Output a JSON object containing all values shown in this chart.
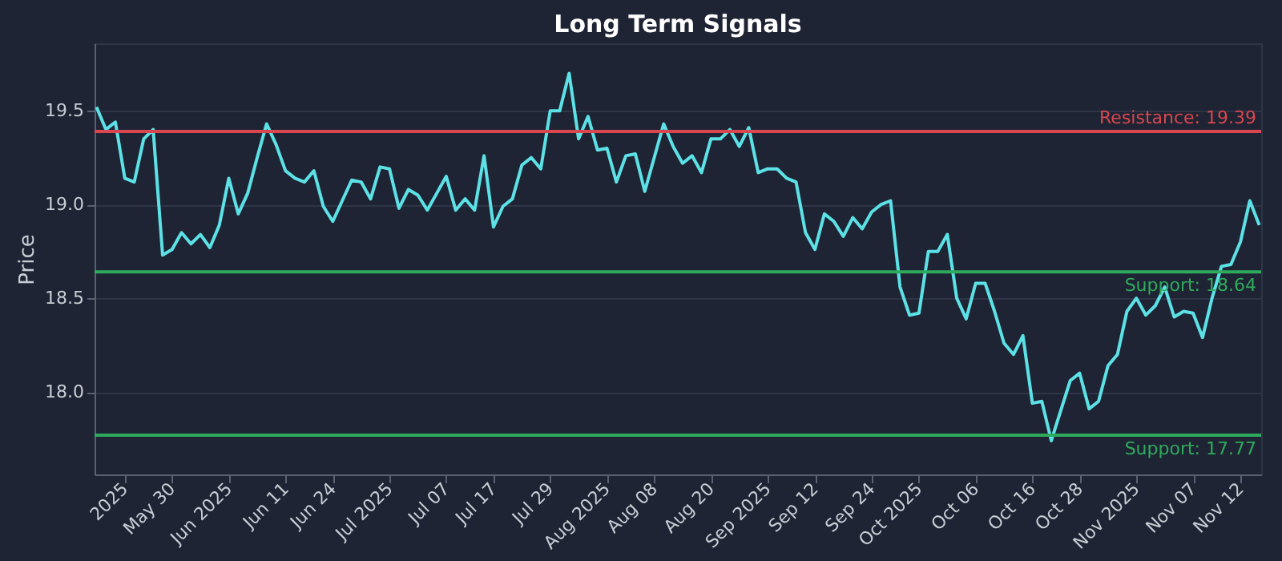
{
  "chart_data": {
    "type": "line",
    "title": "Long Term Signals",
    "ylabel": "Price",
    "categories": [
      null,
      null,
      null,
      "2025",
      null,
      null,
      null,
      null,
      "May 30",
      null,
      null,
      null,
      null,
      null,
      "Jun 2025",
      null,
      null,
      null,
      null,
      null,
      "Jun 11",
      null,
      null,
      null,
      null,
      "Jun 24",
      null,
      null,
      null,
      null,
      null,
      "Jul 2025",
      null,
      null,
      null,
      null,
      null,
      "Jul 07",
      null,
      null,
      null,
      null,
      "Jul 17",
      null,
      null,
      null,
      null,
      null,
      "Jul 29",
      null,
      null,
      null,
      null,
      null,
      "Aug 2025",
      null,
      null,
      null,
      null,
      "Aug 08",
      null,
      null,
      null,
      null,
      null,
      "Aug 20",
      null,
      null,
      null,
      null,
      null,
      "Sep 2025",
      null,
      null,
      null,
      null,
      "Sep 12",
      null,
      null,
      null,
      null,
      null,
      "Sep 24",
      null,
      null,
      null,
      null,
      "Oct 2025",
      null,
      null,
      null,
      null,
      null,
      "Oct 06",
      null,
      null,
      null,
      null,
      null,
      "Oct 16",
      null,
      null,
      null,
      null,
      "Oct 28",
      null,
      null,
      null,
      null,
      null,
      "Nov 2025",
      null,
      null,
      null,
      null,
      null,
      "Nov 07",
      null,
      null,
      null,
      null,
      "Nov 12",
      null,
      null
    ],
    "series": [
      {
        "color": "#5ce1e6",
        "values": [
          19.52,
          19.4,
          19.44,
          19.14,
          19.12,
          19.35,
          19.4,
          18.73,
          18.76,
          18.85,
          18.79,
          18.84,
          18.77,
          18.89,
          19.14,
          18.95,
          19.06,
          19.25,
          19.43,
          19.32,
          19.18,
          19.14,
          19.12,
          19.18,
          18.99,
          18.91,
          19.02,
          19.13,
          19.12,
          19.03,
          19.2,
          19.19,
          18.98,
          19.08,
          19.05,
          18.97,
          19.06,
          19.15,
          18.97,
          19.03,
          18.97,
          19.26,
          18.88,
          18.99,
          19.03,
          19.21,
          19.25,
          19.19,
          19.5,
          19.5,
          19.7,
          19.35,
          19.47,
          19.29,
          19.3,
          19.12,
          19.26,
          19.27,
          19.07,
          19.25,
          19.43,
          19.31,
          19.22,
          19.26,
          19.17,
          19.35,
          19.35,
          19.4,
          19.31,
          19.41,
          19.17,
          19.19,
          19.19,
          19.14,
          19.12,
          18.85,
          18.76,
          18.95,
          18.91,
          18.83,
          18.93,
          18.87,
          18.96,
          19.0,
          19.02,
          18.56,
          18.41,
          18.42,
          18.75,
          18.75,
          18.84,
          18.5,
          18.39,
          18.58,
          18.58,
          18.43,
          18.26,
          18.2,
          18.3,
          17.94,
          17.95,
          17.74,
          17.9,
          18.06,
          18.1,
          17.91,
          17.95,
          18.14,
          18.2,
          18.43,
          18.5,
          18.41,
          18.46,
          18.56,
          18.4,
          18.43,
          18.42,
          18.29,
          18.5,
          18.67,
          18.68,
          18.8,
          19.02,
          18.89
        ]
      }
    ],
    "ylim": [
      17.56,
      19.86
    ],
    "yticks": [
      {
        "value": 18,
        "label": "18.0"
      },
      {
        "value": 18.5,
        "label": "18.5"
      },
      {
        "value": 19,
        "label": "19.0"
      },
      {
        "value": 19.5,
        "label": "19.5"
      }
    ],
    "ref_lines": [
      {
        "axis": "y",
        "value": 19.39,
        "label": "Resistance: 19.39",
        "color": "#d9464f"
      },
      {
        "axis": "y",
        "value": 18.64,
        "label": "Support: 18.64",
        "color": "#2eaa5c"
      },
      {
        "axis": "y",
        "value": 17.77,
        "label": "Support: 17.77",
        "color": "#2eaa5c"
      }
    ],
    "grid": "y",
    "marker": "none",
    "line_style": "solid"
  }
}
